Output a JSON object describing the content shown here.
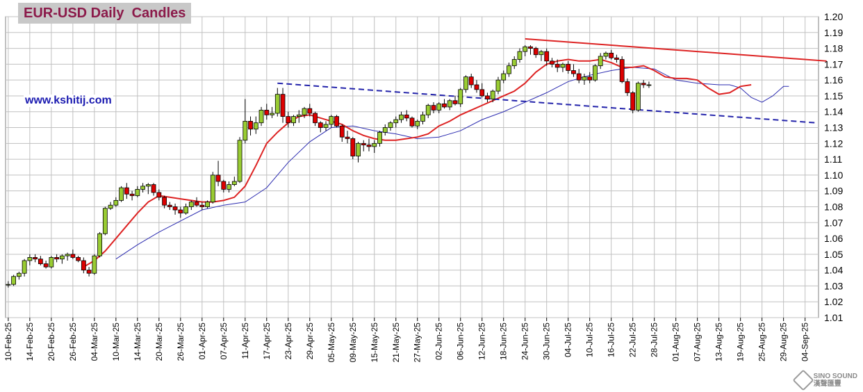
{
  "title": "EUR-USD Daily  Candles",
  "website": "www.kshitij.com",
  "watermark": {
    "line1": "SINO SOUND",
    "line2": "漢聲匯豐"
  },
  "colors": {
    "up": "#99cc33",
    "down": "#dd0000",
    "ma_fast": "#dd2222",
    "ma_slow": "#2b2bb0",
    "trend_red": "#dd2222",
    "trend_blue": "#2222aa",
    "grid": "#c0c0c0"
  },
  "chart_data": {
    "type": "candlestick",
    "title": "EUR-USD Daily  Candles",
    "x_tick_labels": [
      "10-Feb-25",
      "14-Feb-25",
      "20-Feb-25",
      "26-Feb-25",
      "04-Mar-25",
      "10-Mar-25",
      "14-Mar-25",
      "20-Mar-25",
      "26-Mar-25",
      "01-Apr-25",
      "07-Apr-25",
      "11-Apr-25",
      "17-Apr-25",
      "23-Apr-25",
      "29-Apr-25",
      "05-May-25",
      "09-May-25",
      "15-May-25",
      "21-May-25",
      "27-May-25",
      "02-Jun-25",
      "06-Jun-25",
      "12-Jun-25",
      "18-Jun-25",
      "24-Jun-25",
      "30-Jun-25",
      "04-Jul-25",
      "10-Jul-25",
      "16-Jul-25",
      "22-Jul-25",
      "28-Jul-25",
      "01-Aug-25",
      "07-Aug-25",
      "13-Aug-25",
      "19-Aug-25",
      "25-Aug-25",
      "29-Aug-25",
      "04-Sep-25"
    ],
    "x_tick_index": [
      0,
      4,
      8,
      12,
      16,
      20,
      24,
      28,
      32,
      36,
      40,
      44,
      48,
      52,
      56,
      60,
      64,
      68,
      72,
      76,
      80,
      84,
      88,
      92,
      96,
      100,
      104,
      108,
      112,
      116,
      120,
      124,
      128,
      132,
      136,
      140,
      144,
      148
    ],
    "y_ticks": [
      1.01,
      1.02,
      1.03,
      1.04,
      1.05,
      1.06,
      1.07,
      1.08,
      1.09,
      1.1,
      1.11,
      1.12,
      1.13,
      1.14,
      1.15,
      1.16,
      1.17,
      1.18,
      1.19,
      1.2
    ],
    "ylim": [
      1.01,
      1.2
    ],
    "grid": true,
    "candles": [
      [
        1.031,
        1.033,
        1.029,
        1.031
      ],
      [
        1.031,
        1.037,
        1.03,
        1.036
      ],
      [
        1.036,
        1.039,
        1.034,
        1.038
      ],
      [
        1.038,
        1.047,
        1.036,
        1.046
      ],
      [
        1.046,
        1.05,
        1.043,
        1.048
      ],
      [
        1.048,
        1.05,
        1.045,
        1.047
      ],
      [
        1.047,
        1.049,
        1.043,
        1.044
      ],
      [
        1.044,
        1.046,
        1.041,
        1.042
      ],
      [
        1.042,
        1.049,
        1.041,
        1.048
      ],
      [
        1.048,
        1.05,
        1.045,
        1.047
      ],
      [
        1.047,
        1.05,
        1.044,
        1.049
      ],
      [
        1.049,
        1.051,
        1.046,
        1.05
      ],
      [
        1.05,
        1.053,
        1.047,
        1.048
      ],
      [
        1.048,
        1.049,
        1.045,
        1.046
      ],
      [
        1.046,
        1.048,
        1.038,
        1.04
      ],
      [
        1.04,
        1.042,
        1.036,
        1.038
      ],
      [
        1.038,
        1.05,
        1.037,
        1.049
      ],
      [
        1.049,
        1.064,
        1.048,
        1.063
      ],
      [
        1.063,
        1.08,
        1.062,
        1.079
      ],
      [
        1.079,
        1.083,
        1.078,
        1.081
      ],
      [
        1.081,
        1.086,
        1.08,
        1.084
      ],
      [
        1.084,
        1.093,
        1.083,
        1.092
      ],
      [
        1.092,
        1.095,
        1.085,
        1.088
      ],
      [
        1.088,
        1.09,
        1.084,
        1.087
      ],
      [
        1.087,
        1.093,
        1.086,
        1.091
      ],
      [
        1.091,
        1.095,
        1.089,
        1.093
      ],
      [
        1.093,
        1.095,
        1.088,
        1.094
      ],
      [
        1.094,
        1.095,
        1.087,
        1.089
      ],
      [
        1.089,
        1.091,
        1.084,
        1.086
      ],
      [
        1.086,
        1.087,
        1.079,
        1.081
      ],
      [
        1.081,
        1.083,
        1.078,
        1.08
      ],
      [
        1.08,
        1.082,
        1.075,
        1.078
      ],
      [
        1.078,
        1.08,
        1.073,
        1.076
      ],
      [
        1.076,
        1.082,
        1.075,
        1.08
      ],
      [
        1.08,
        1.084,
        1.078,
        1.083
      ],
      [
        1.083,
        1.086,
        1.08,
        1.081
      ],
      [
        1.081,
        1.083,
        1.078,
        1.08
      ],
      [
        1.08,
        1.084,
        1.079,
        1.083
      ],
      [
        1.083,
        1.102,
        1.082,
        1.1
      ],
      [
        1.1,
        1.109,
        1.093,
        1.096
      ],
      [
        1.096,
        1.097,
        1.089,
        1.091
      ],
      [
        1.091,
        1.096,
        1.089,
        1.094
      ],
      [
        1.094,
        1.099,
        1.093,
        1.096
      ],
      [
        1.096,
        1.124,
        1.095,
        1.122
      ],
      [
        1.122,
        1.148,
        1.12,
        1.134
      ],
      [
        1.134,
        1.137,
        1.125,
        1.129
      ],
      [
        1.129,
        1.137,
        1.126,
        1.133
      ],
      [
        1.133,
        1.143,
        1.131,
        1.141
      ],
      [
        1.141,
        1.145,
        1.135,
        1.138
      ],
      [
        1.138,
        1.143,
        1.136,
        1.139
      ],
      [
        1.139,
        1.155,
        1.137,
        1.151
      ],
      [
        1.151,
        1.155,
        1.133,
        1.137
      ],
      [
        1.137,
        1.14,
        1.13,
        1.133
      ],
      [
        1.133,
        1.138,
        1.131,
        1.137
      ],
      [
        1.137,
        1.141,
        1.133,
        1.138
      ],
      [
        1.138,
        1.143,
        1.136,
        1.142
      ],
      [
        1.142,
        1.145,
        1.137,
        1.139
      ],
      [
        1.139,
        1.14,
        1.131,
        1.133
      ],
      [
        1.133,
        1.134,
        1.127,
        1.13
      ],
      [
        1.13,
        1.134,
        1.128,
        1.132
      ],
      [
        1.132,
        1.138,
        1.13,
        1.137
      ],
      [
        1.137,
        1.138,
        1.13,
        1.131
      ],
      [
        1.131,
        1.132,
        1.121,
        1.124
      ],
      [
        1.124,
        1.128,
        1.12,
        1.123
      ],
      [
        1.123,
        1.124,
        1.11,
        1.112
      ],
      [
        1.112,
        1.121,
        1.108,
        1.12
      ],
      [
        1.12,
        1.122,
        1.115,
        1.119
      ],
      [
        1.119,
        1.123,
        1.115,
        1.118
      ],
      [
        1.118,
        1.122,
        1.114,
        1.12
      ],
      [
        1.12,
        1.128,
        1.118,
        1.127
      ],
      [
        1.127,
        1.132,
        1.125,
        1.13
      ],
      [
        1.13,
        1.134,
        1.128,
        1.133
      ],
      [
        1.133,
        1.137,
        1.13,
        1.135
      ],
      [
        1.135,
        1.14,
        1.133,
        1.138
      ],
      [
        1.138,
        1.141,
        1.134,
        1.136
      ],
      [
        1.136,
        1.137,
        1.13,
        1.131
      ],
      [
        1.131,
        1.135,
        1.129,
        1.134
      ],
      [
        1.134,
        1.14,
        1.132,
        1.138
      ],
      [
        1.138,
        1.145,
        1.136,
        1.144
      ],
      [
        1.144,
        1.146,
        1.139,
        1.141
      ],
      [
        1.141,
        1.146,
        1.139,
        1.145
      ],
      [
        1.145,
        1.148,
        1.142,
        1.143
      ],
      [
        1.143,
        1.148,
        1.141,
        1.147
      ],
      [
        1.147,
        1.15,
        1.144,
        1.145
      ],
      [
        1.145,
        1.155,
        1.143,
        1.154
      ],
      [
        1.154,
        1.163,
        1.152,
        1.162
      ],
      [
        1.162,
        1.164,
        1.155,
        1.157
      ],
      [
        1.157,
        1.16,
        1.152,
        1.154
      ],
      [
        1.154,
        1.158,
        1.149,
        1.15
      ],
      [
        1.15,
        1.152,
        1.146,
        1.148
      ],
      [
        1.148,
        1.154,
        1.146,
        1.153
      ],
      [
        1.153,
        1.162,
        1.151,
        1.16
      ],
      [
        1.16,
        1.166,
        1.158,
        1.164
      ],
      [
        1.164,
        1.171,
        1.162,
        1.169
      ],
      [
        1.169,
        1.175,
        1.167,
        1.173
      ],
      [
        1.173,
        1.18,
        1.171,
        1.178
      ],
      [
        1.178,
        1.182,
        1.175,
        1.181
      ],
      [
        1.181,
        1.182,
        1.176,
        1.18
      ],
      [
        1.18,
        1.181,
        1.174,
        1.176
      ],
      [
        1.176,
        1.179,
        1.172,
        1.178
      ],
      [
        1.178,
        1.18,
        1.169,
        1.172
      ],
      [
        1.172,
        1.174,
        1.168,
        1.17
      ],
      [
        1.17,
        1.173,
        1.165,
        1.168
      ],
      [
        1.168,
        1.171,
        1.165,
        1.17
      ],
      [
        1.17,
        1.172,
        1.164,
        1.166
      ],
      [
        1.166,
        1.17,
        1.162,
        1.164
      ],
      [
        1.164,
        1.167,
        1.158,
        1.16
      ],
      [
        1.16,
        1.164,
        1.157,
        1.162
      ],
      [
        1.162,
        1.165,
        1.158,
        1.16
      ],
      [
        1.16,
        1.17,
        1.159,
        1.169
      ],
      [
        1.169,
        1.177,
        1.167,
        1.175
      ],
      [
        1.175,
        1.178,
        1.173,
        1.177
      ],
      [
        1.177,
        1.179,
        1.173,
        1.174
      ],
      [
        1.174,
        1.176,
        1.171,
        1.173
      ],
      [
        1.173,
        1.175,
        1.158,
        1.159
      ],
      [
        1.159,
        1.161,
        1.15,
        1.152
      ],
      [
        1.152,
        1.153,
        1.139,
        1.141
      ],
      [
        1.141,
        1.159,
        1.14,
        1.158
      ],
      [
        1.158,
        1.16,
        1.155,
        1.157
      ],
      [
        1.157,
        1.159,
        1.155,
        1.157
      ]
    ],
    "ma_fast": [
      [
        14,
        1.042
      ],
      [
        16,
        1.046
      ],
      [
        18,
        1.052
      ],
      [
        20,
        1.06
      ],
      [
        22,
        1.068
      ],
      [
        24,
        1.076
      ],
      [
        26,
        1.083
      ],
      [
        28,
        1.087
      ],
      [
        30,
        1.086
      ],
      [
        32,
        1.085
      ],
      [
        34,
        1.084
      ],
      [
        36,
        1.083
      ],
      [
        38,
        1.083
      ],
      [
        40,
        1.084
      ],
      [
        42,
        1.086
      ],
      [
        44,
        1.093
      ],
      [
        46,
        1.106
      ],
      [
        48,
        1.12
      ],
      [
        50,
        1.127
      ],
      [
        52,
        1.133
      ],
      [
        54,
        1.137
      ],
      [
        56,
        1.138
      ],
      [
        58,
        1.136
      ],
      [
        60,
        1.134
      ],
      [
        62,
        1.132
      ],
      [
        64,
        1.128
      ],
      [
        66,
        1.125
      ],
      [
        68,
        1.123
      ],
      [
        70,
        1.122
      ],
      [
        72,
        1.122
      ],
      [
        74,
        1.123
      ],
      [
        76,
        1.124
      ],
      [
        78,
        1.126
      ],
      [
        80,
        1.131
      ],
      [
        82,
        1.134
      ],
      [
        84,
        1.138
      ],
      [
        86,
        1.141
      ],
      [
        88,
        1.144
      ],
      [
        90,
        1.147
      ],
      [
        92,
        1.15
      ],
      [
        94,
        1.153
      ],
      [
        96,
        1.158
      ],
      [
        98,
        1.165
      ],
      [
        100,
        1.17
      ],
      [
        102,
        1.172
      ],
      [
        104,
        1.173
      ],
      [
        106,
        1.172
      ],
      [
        108,
        1.172
      ],
      [
        110,
        1.173
      ],
      [
        112,
        1.171
      ],
      [
        114,
        1.168
      ],
      [
        116,
        1.168
      ],
      [
        118,
        1.169
      ],
      [
        120,
        1.166
      ],
      [
        122,
        1.162
      ],
      [
        124,
        1.161
      ],
      [
        126,
        1.161
      ],
      [
        128,
        1.16
      ],
      [
        130,
        1.155
      ],
      [
        132,
        1.151
      ],
      [
        134,
        1.152
      ],
      [
        136,
        1.156
      ],
      [
        138,
        1.157
      ]
    ],
    "ma_slow": [
      [
        20,
        1.047
      ],
      [
        24,
        1.056
      ],
      [
        28,
        1.064
      ],
      [
        32,
        1.071
      ],
      [
        36,
        1.078
      ],
      [
        40,
        1.081
      ],
      [
        44,
        1.083
      ],
      [
        48,
        1.092
      ],
      [
        52,
        1.108
      ],
      [
        56,
        1.121
      ],
      [
        60,
        1.13
      ],
      [
        64,
        1.131
      ],
      [
        68,
        1.128
      ],
      [
        72,
        1.126
      ],
      [
        76,
        1.123
      ],
      [
        80,
        1.124
      ],
      [
        84,
        1.128
      ],
      [
        88,
        1.135
      ],
      [
        92,
        1.14
      ],
      [
        96,
        1.146
      ],
      [
        100,
        1.152
      ],
      [
        104,
        1.159
      ],
      [
        108,
        1.163
      ],
      [
        112,
        1.166
      ],
      [
        116,
        1.168
      ],
      [
        120,
        1.167
      ],
      [
        124,
        1.16
      ],
      [
        128,
        1.158
      ],
      [
        132,
        1.157
      ],
      [
        134,
        1.157
      ],
      [
        136,
        1.155
      ],
      [
        138,
        1.149
      ],
      [
        140,
        1.146
      ],
      [
        142,
        1.15
      ],
      [
        144,
        1.156
      ],
      [
        145,
        1.156
      ]
    ],
    "trendlines": [
      {
        "color": "red",
        "style": "solid",
        "points": [
          [
            96,
            1.186
          ],
          [
            152,
            1.172
          ]
        ]
      },
      {
        "color": "blue",
        "style": "dashed",
        "points": [
          [
            50,
            1.158
          ],
          [
            150,
            1.133
          ]
        ]
      }
    ]
  }
}
